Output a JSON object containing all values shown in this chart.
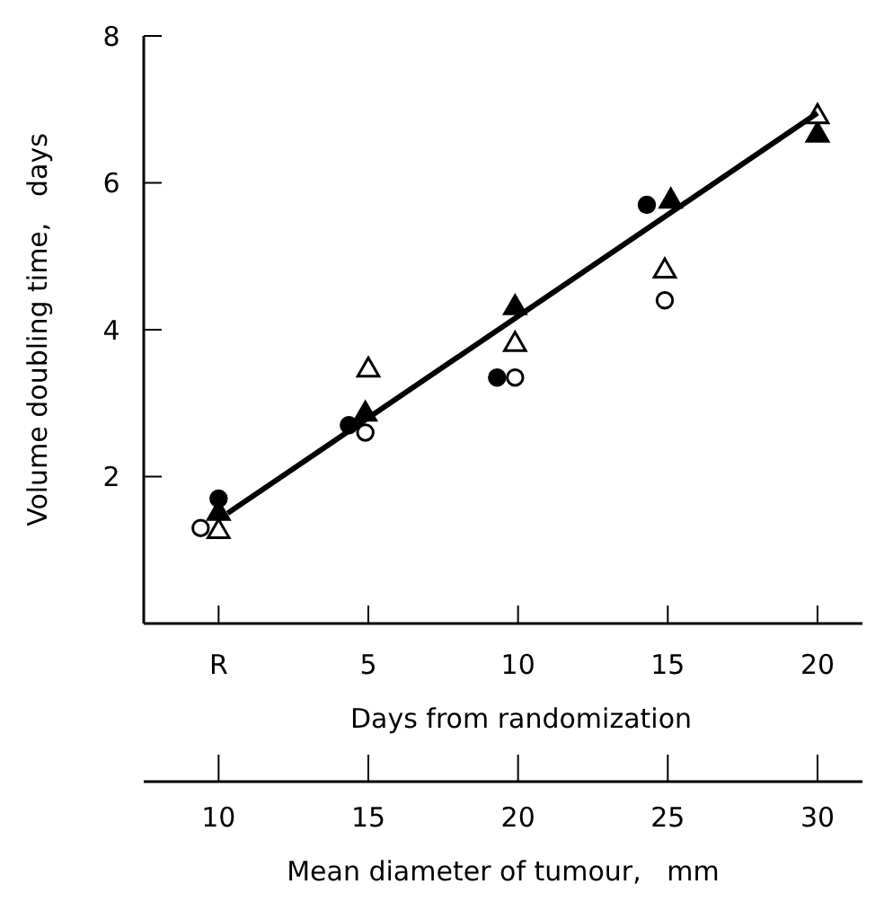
{
  "chart_data": {
    "type": "scatter",
    "xlabel": "Days from randomization",
    "ylabel": "Volume doubling time,   days",
    "x2label": "Mean diameter of tumour,   mm",
    "xlim": [
      -2.5,
      21.5
    ],
    "xticks": [
      {
        "value": 0,
        "label": "R"
      },
      5,
      10,
      15,
      20
    ],
    "x2lim": [
      7.5,
      31.5
    ],
    "x2ticks": [
      10,
      15,
      20,
      25,
      30
    ],
    "ylim": [
      0,
      8
    ],
    "yticks": [
      2,
      4,
      6,
      8
    ],
    "grid": false,
    "series": [
      {
        "marker": "circle",
        "color": "#000000",
        "x": [
          0,
          4.35,
          9.3,
          14.3
        ],
        "values": [
          1.7,
          2.7,
          3.35,
          5.7
        ]
      },
      {
        "marker": "circle",
        "color": "#ffffff",
        "x": [
          -0.6,
          4.9,
          9.9,
          14.9
        ],
        "values": [
          1.3,
          2.6,
          3.35,
          4.4
        ]
      },
      {
        "marker": "triangle",
        "color": "#000000",
        "x": [
          0,
          4.9,
          9.9,
          15.1,
          20
        ],
        "values": [
          1.5,
          2.85,
          4.3,
          5.75,
          6.65
        ]
      },
      {
        "marker": "triangle",
        "color": "#ffffff",
        "x": [
          0,
          5,
          9.9,
          14.9,
          20
        ],
        "values": [
          1.25,
          3.45,
          3.8,
          4.8,
          6.9
        ]
      },
      {
        "type": "line",
        "marker": "none",
        "color": "#000000",
        "x": [
          0.3,
          20
        ],
        "values": [
          1.5,
          6.95
        ]
      }
    ]
  }
}
